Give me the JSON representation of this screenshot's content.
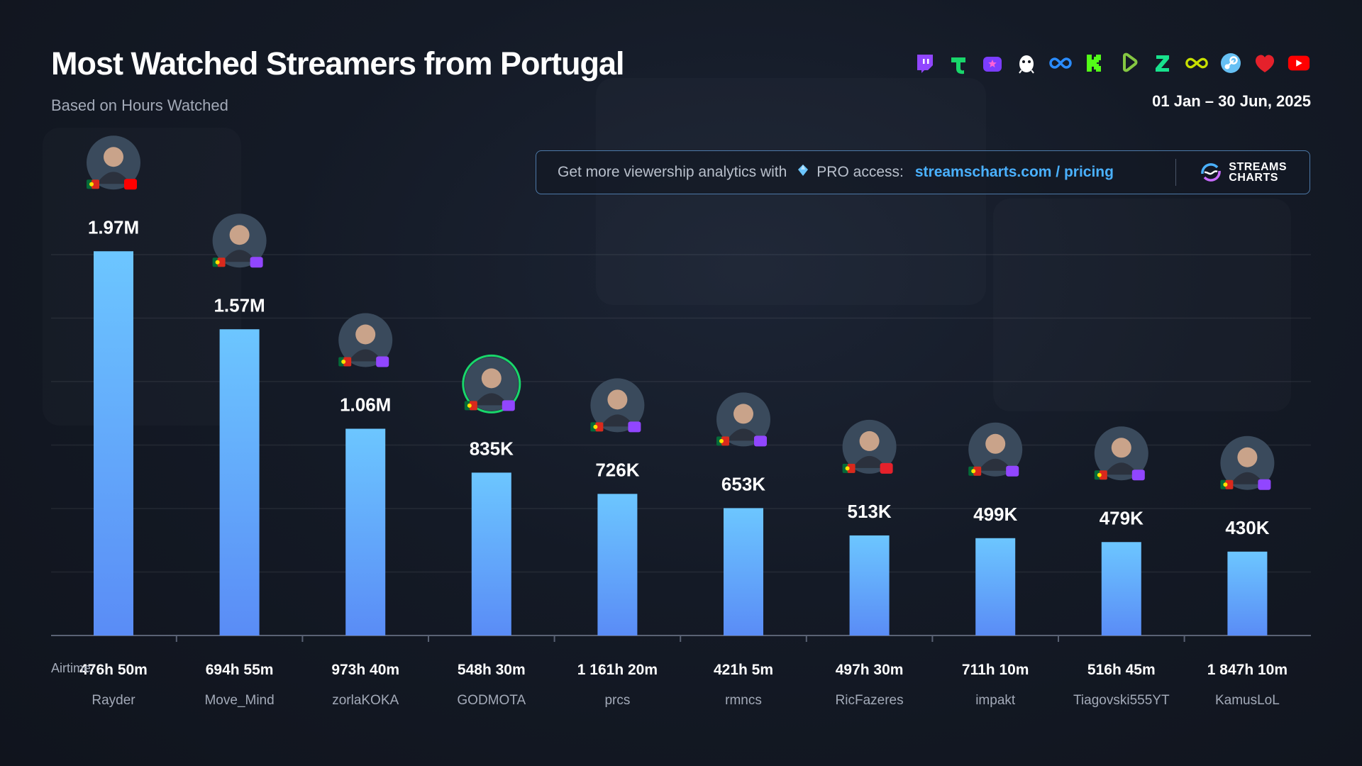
{
  "header": {
    "title": "Most Watched Streamers from Portugal",
    "subtitle": "Based on Hours Watched",
    "date_range": "01 Jan – 30 Jun, 2025"
  },
  "platforms": [
    {
      "icon": "twitch-icon",
      "color": "#9146ff"
    },
    {
      "icon": "trovo-icon",
      "color": "#19d66b"
    },
    {
      "icon": "vkplay-icon",
      "color": "#7b3dff"
    },
    {
      "icon": "bilibili-icon",
      "color": "#ffffff"
    },
    {
      "icon": "infinity-icon",
      "color": "#2a8cff"
    },
    {
      "icon": "kick-icon",
      "color": "#53fc18"
    },
    {
      "icon": "rumble-icon",
      "color": "#85c742"
    },
    {
      "icon": "z-icon",
      "color": "#18e28d"
    },
    {
      "icon": "loop-icon",
      "color": "#c8e000"
    },
    {
      "icon": "steam-icon",
      "color": "#66c0f4"
    },
    {
      "icon": "heart-icon",
      "color": "#e5212b"
    },
    {
      "icon": "youtube-icon",
      "color": "#ff0000"
    }
  ],
  "promo": {
    "text": "Get more viewership analytics with",
    "pro": "PRO access:",
    "link": "streamscharts.com / pricing",
    "logo_line1": "STREAMS",
    "logo_line2": "CHARTS"
  },
  "airtime_label": "Airtime:",
  "colors": {
    "bar_top": "#6cc6ff",
    "bar_bottom": "#5a8cf6",
    "accent": "#4ab1ff"
  },
  "chart_data": {
    "type": "bar",
    "categories": [
      "Rayder",
      "Move_Mind",
      "zorlaKOKA",
      "GODMOTA",
      "prcs",
      "rmncs",
      "RicFazeres",
      "impakt",
      "Tiagovski555YT",
      "KamusLoL"
    ],
    "values": [
      1970000,
      1570000,
      1060000,
      835000,
      726000,
      653000,
      513000,
      499000,
      479000,
      430000
    ],
    "value_labels": [
      "1.97M",
      "1.57M",
      "1.06M",
      "835K",
      "726K",
      "653K",
      "513K",
      "499K",
      "479K",
      "430K"
    ],
    "airtime": [
      "476h 50m",
      "694h 55m",
      "973h 40m",
      "548h 30m",
      "1 161h 20m",
      "421h 5m",
      "497h 30m",
      "711h 10m",
      "516h 45m",
      "1 847h 10m"
    ],
    "platform": [
      "youtube",
      "twitch",
      "twitch",
      "twitch",
      "twitch",
      "twitch",
      "heart",
      "twitch",
      "twitch",
      "twitch"
    ],
    "ylim": [
      0,
      2000000
    ],
    "grid": true,
    "title": "Most Watched Streamers from Portugal",
    "subtitle": "Based on Hours Watched"
  }
}
